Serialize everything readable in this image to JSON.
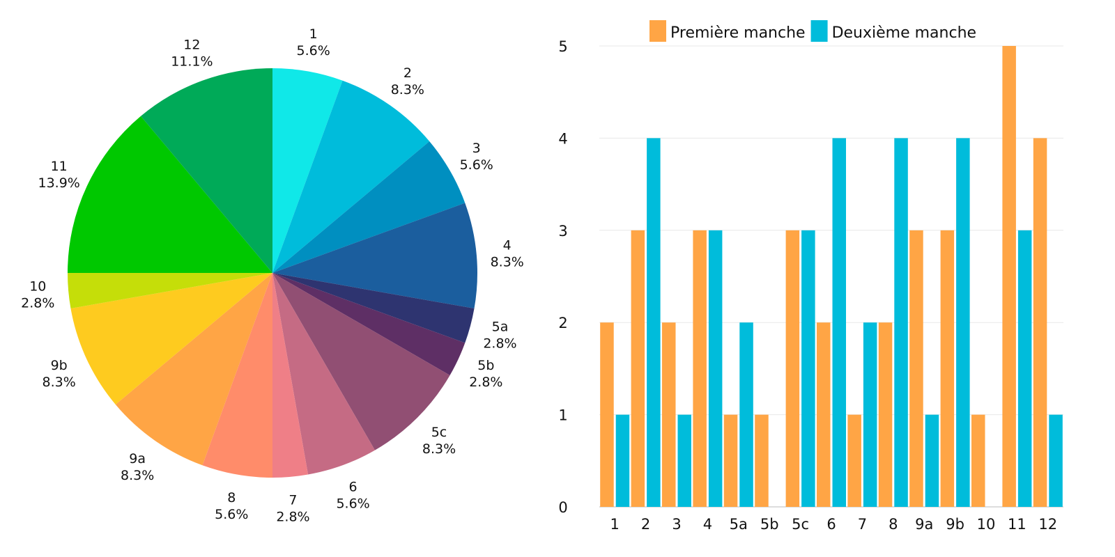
{
  "chart_data": [
    {
      "type": "pie",
      "labels": [
        "1",
        "2",
        "3",
        "4",
        "5a",
        "5b",
        "5c",
        "6",
        "7",
        "8",
        "9a",
        "9b",
        "10",
        "11",
        "12"
      ],
      "values": [
        2,
        3,
        2,
        3,
        1,
        1,
        3,
        2,
        1,
        2,
        3,
        3,
        1,
        5,
        4
      ],
      "percent_labels": [
        "5.6%",
        "8.3%",
        "5.6%",
        "8.3%",
        "2.8%",
        "2.8%",
        "8.3%",
        "5.6%",
        "2.8%",
        "5.6%",
        "8.3%",
        "8.3%",
        "2.8%",
        "13.9%",
        "11.1%"
      ],
      "colors": [
        "#10e8e8",
        "#00bcdb",
        "#008fc0",
        "#1b5e9e",
        "#2e3470",
        "#5e2f65",
        "#914f73",
        "#c56b84",
        "#ef7f87",
        "#ff8c6a",
        "#ffa545",
        "#fecb1f",
        "#c5de09",
        "#00c800",
        "#00aa58"
      ]
    },
    {
      "type": "bar",
      "categories": [
        "1",
        "2",
        "3",
        "4",
        "5a",
        "5b",
        "5c",
        "6",
        "7",
        "8",
        "9a",
        "9b",
        "10",
        "11",
        "12"
      ],
      "series": [
        {
          "name": "Première manche",
          "color": "#ffa545",
          "values": [
            2,
            3,
            2,
            3,
            1,
            1,
            3,
            2,
            1,
            2,
            3,
            3,
            1,
            5,
            4
          ]
        },
        {
          "name": "Deuxième manche",
          "color": "#00bcdb",
          "values": [
            1,
            4,
            1,
            3,
            2,
            0,
            3,
            4,
            2,
            4,
            1,
            4,
            0,
            3,
            1
          ]
        }
      ],
      "ylim": [
        0,
        5
      ],
      "yticks": [
        "0",
        "1",
        "2",
        "3",
        "4",
        "5"
      ],
      "grid": true,
      "legend": "top"
    }
  ]
}
